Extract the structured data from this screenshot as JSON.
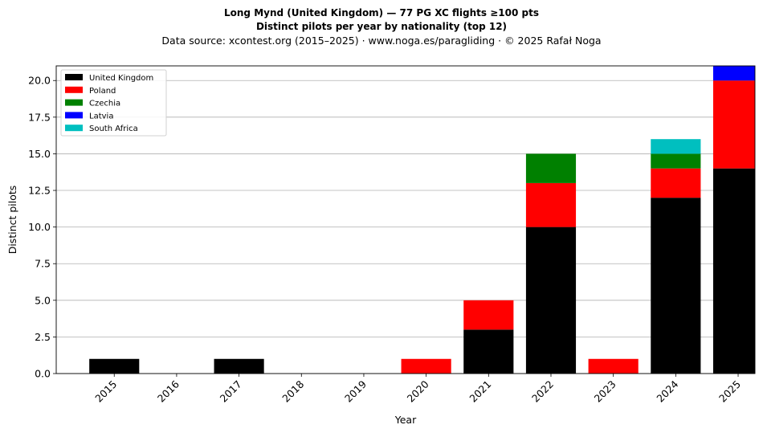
{
  "title_line1": "Long Mynd (United Kingdom)  —  77 PG XC flights ≥100 pts",
  "title_line2": "Distinct pilots per year by nationality (top 12)",
  "subtitle": "Data source: xcontest.org (2015–2025)  ·  www.noga.es/paragliding  ·  © 2025 Rafał Noga",
  "chart_data": {
    "type": "bar",
    "stacked": true,
    "title": "Long Mynd (United Kingdom)  —  77 PG XC flights ≥100 pts",
    "subtitle": "Distinct pilots per year by nationality (top 12)",
    "xlabel": "Year",
    "ylabel": "Distinct pilots",
    "categories": [
      "2015",
      "2016",
      "2017",
      "2018",
      "2019",
      "2020",
      "2021",
      "2022",
      "2023",
      "2024",
      "2025"
    ],
    "series": [
      {
        "name": "United Kingdom",
        "color": "#000000",
        "values": [
          1,
          0,
          1,
          0,
          0,
          0,
          3,
          10,
          0,
          12,
          14
        ]
      },
      {
        "name": "Poland",
        "color": "#ff0000",
        "values": [
          0,
          0,
          0,
          0,
          0,
          1,
          2,
          3,
          1,
          2,
          6
        ]
      },
      {
        "name": "Czechia",
        "color": "#008000",
        "values": [
          0,
          0,
          0,
          0,
          0,
          0,
          0,
          2,
          0,
          1,
          0
        ]
      },
      {
        "name": "Latvia",
        "color": "#0000ff",
        "values": [
          0,
          0,
          0,
          0,
          0,
          0,
          0,
          0,
          0,
          0,
          1
        ]
      },
      {
        "name": "South Africa",
        "color": "#00bfbf",
        "values": [
          0,
          0,
          0,
          0,
          0,
          0,
          0,
          0,
          0,
          1,
          0
        ]
      }
    ],
    "ylim": [
      0,
      21
    ],
    "yticks": [
      "0.0",
      "2.5",
      "5.0",
      "7.5",
      "10.0",
      "12.5",
      "15.0",
      "17.5",
      "20.0"
    ],
    "grid": "horizontal",
    "legend_position": "top-left"
  }
}
